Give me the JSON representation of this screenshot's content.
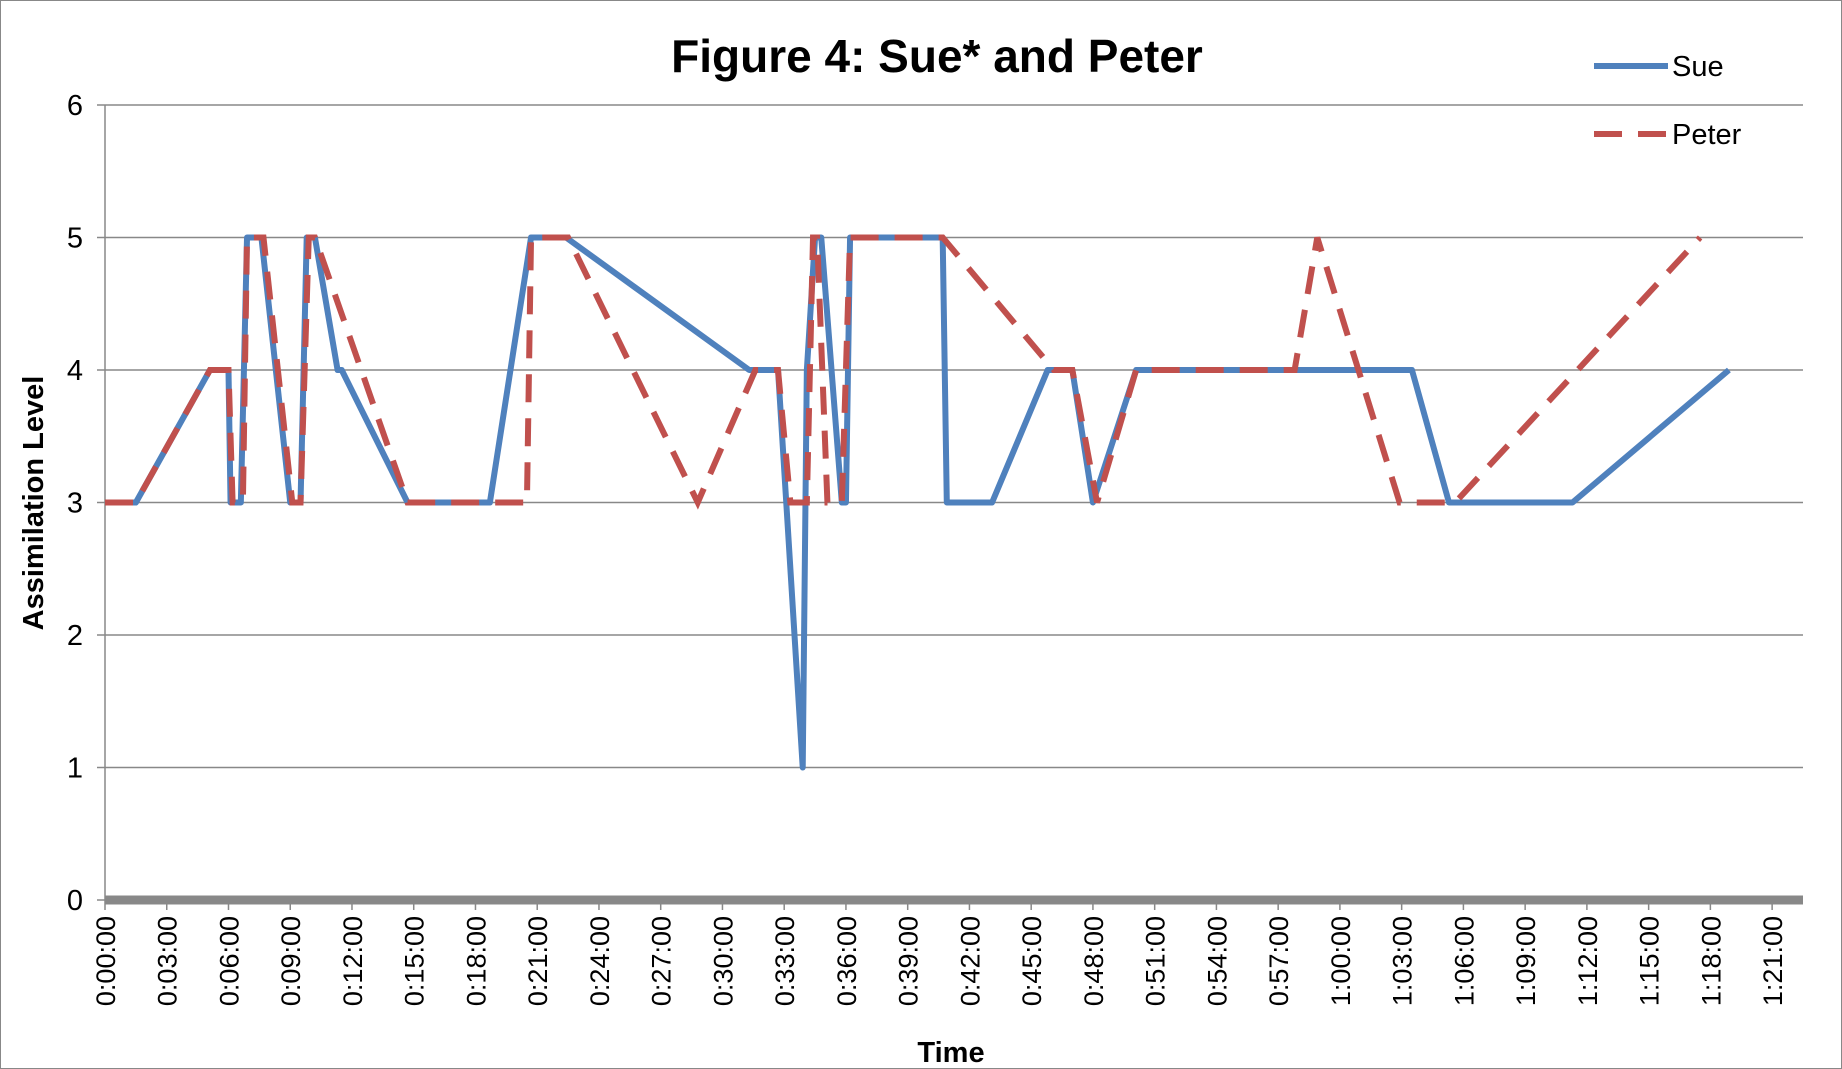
{
  "chart_data": {
    "type": "line",
    "title": "Figure 4: Sue* and Peter",
    "x_label": "Time",
    "y_label": "Assimilation Level",
    "xlim": [
      0,
      82.5
    ],
    "ylim": [
      0,
      6
    ],
    "yticks": [
      0,
      1,
      2,
      3,
      4,
      5,
      6
    ],
    "xticks": [
      {
        "value": 0,
        "label": "0:00:00"
      },
      {
        "value": 3,
        "label": "0:03:00"
      },
      {
        "value": 6,
        "label": "0:06:00"
      },
      {
        "value": 9,
        "label": "0:09:00"
      },
      {
        "value": 12,
        "label": "0:12:00"
      },
      {
        "value": 15,
        "label": "0:15:00"
      },
      {
        "value": 18,
        "label": "0:18:00"
      },
      {
        "value": 21,
        "label": "0:21:00"
      },
      {
        "value": 24,
        "label": "0:24:00"
      },
      {
        "value": 27,
        "label": "0:27:00"
      },
      {
        "value": 30,
        "label": "0:30:00"
      },
      {
        "value": 33,
        "label": "0:33:00"
      },
      {
        "value": 36,
        "label": "0:36:00"
      },
      {
        "value": 39,
        "label": "0:39:00"
      },
      {
        "value": 42,
        "label": "0:42:00"
      },
      {
        "value": 45,
        "label": "0:45:00"
      },
      {
        "value": 48,
        "label": "0:48:00"
      },
      {
        "value": 51,
        "label": "0:51:00"
      },
      {
        "value": 54,
        "label": "0:54:00"
      },
      {
        "value": 57,
        "label": "0:57:00"
      },
      {
        "value": 60,
        "label": "1:00:00"
      },
      {
        "value": 63,
        "label": "1:03:00"
      },
      {
        "value": 66,
        "label": "1:06:00"
      },
      {
        "value": 69,
        "label": "1:09:00"
      },
      {
        "value": 72,
        "label": "1:12:00"
      },
      {
        "value": 75,
        "label": "1:15:00"
      },
      {
        "value": 78,
        "label": "1:18:00"
      },
      {
        "value": 81,
        "label": "1:21:00"
      }
    ],
    "grid": true,
    "legend": "top-right",
    "series": [
      {
        "name": "Sue",
        "color": "#4f81bd",
        "dash": false,
        "x": [
          0,
          1.5,
          5.1,
          6.0,
          6.1,
          6.6,
          6.9,
          7.6,
          9.0,
          9.5,
          9.8,
          10.2,
          11.3,
          11.5,
          14.7,
          18.7,
          20.7,
          22.4,
          31.3,
          32.7,
          33.9,
          34.1,
          34.5,
          34.8,
          35.8,
          36.0,
          36.2,
          40.7,
          40.9,
          43.1,
          45.8,
          47.0,
          48.0,
          50.1,
          63.5,
          65.3,
          71.3,
          78.9
        ],
        "values": [
          3,
          3,
          4,
          4,
          3,
          3,
          5,
          5,
          3,
          3,
          5,
          5,
          4,
          4,
          3,
          3,
          5,
          5,
          4,
          4,
          1,
          4,
          5,
          5,
          3,
          3,
          5,
          5,
          3,
          3,
          4,
          4,
          3,
          4,
          4,
          3,
          3,
          4
        ]
      },
      {
        "name": "Peter",
        "color": "#c0504d",
        "dash": true,
        "x": [
          0,
          1.5,
          5.1,
          6.0,
          6.2,
          6.7,
          6.9,
          7.7,
          9.1,
          9.5,
          9.9,
          10.2,
          14.7,
          18.7,
          20.5,
          20.7,
          22.5,
          28.8,
          31.6,
          32.7,
          33.3,
          34.1,
          34.4,
          34.6,
          35.1,
          35.8,
          36.2,
          40.7,
          46.1,
          47.0,
          48.2,
          50.1,
          57.8,
          58.9,
          62.9,
          65.6,
          77.5
        ],
        "values": [
          3,
          3,
          4,
          4,
          3,
          3,
          5,
          5,
          3,
          3,
          5,
          5,
          3,
          3,
          3,
          5,
          5,
          3,
          4,
          4,
          3,
          3,
          5,
          5,
          3,
          3,
          5,
          5,
          4,
          4,
          3,
          4,
          4,
          5,
          3,
          3,
          5
        ]
      }
    ]
  }
}
